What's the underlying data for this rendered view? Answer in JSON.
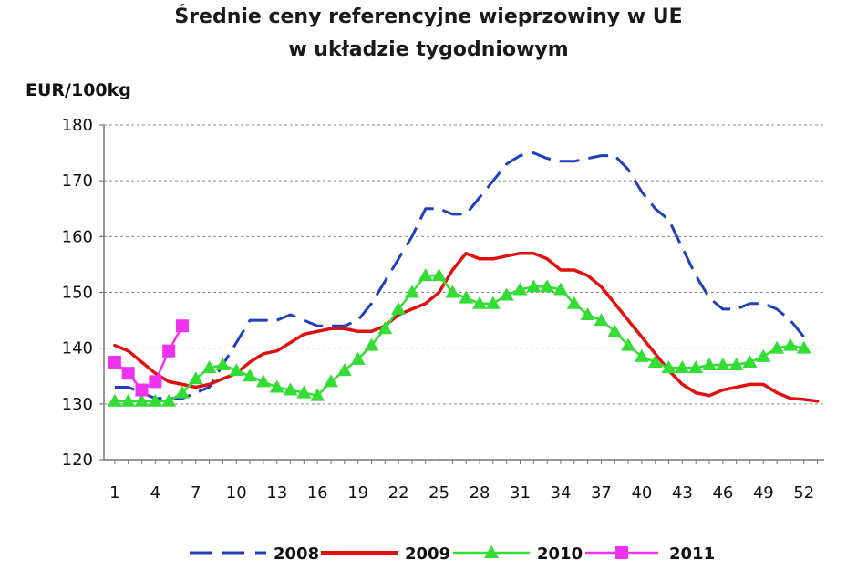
{
  "chart_data": {
    "type": "line",
    "title": "Średnie ceny referencyjne wieprzowiny w UE",
    "subtitle": "w układzie tygodniowym",
    "ylabel": "EUR/100kg",
    "xlabel": "",
    "xlim": [
      1,
      53
    ],
    "ylim": [
      120,
      180
    ],
    "yticks": [
      120,
      130,
      140,
      150,
      160,
      170,
      180
    ],
    "xticks": [
      1,
      4,
      7,
      10,
      13,
      16,
      19,
      22,
      25,
      28,
      31,
      34,
      37,
      40,
      43,
      46,
      49,
      52
    ],
    "grid": true,
    "legend_position": "bottom",
    "series": [
      {
        "name": "2008",
        "color": "#1f3fbf",
        "style": "dashed",
        "marker": "none",
        "x": [
          1,
          2,
          3,
          4,
          5,
          6,
          7,
          8,
          9,
          10,
          11,
          12,
          13,
          14,
          15,
          16,
          17,
          18,
          19,
          20,
          21,
          22,
          23,
          24,
          25,
          26,
          27,
          28,
          29,
          30,
          31,
          32,
          33,
          34,
          35,
          36,
          37,
          38,
          39,
          40,
          41,
          42,
          43,
          44,
          45,
          46,
          47,
          48,
          49,
          50,
          51,
          52
        ],
        "values": [
          133,
          133,
          132,
          131,
          131,
          131,
          132,
          133,
          137,
          141,
          145,
          145,
          145,
          146,
          145,
          144,
          144,
          144,
          145,
          148,
          152,
          156,
          160,
          165,
          165,
          164,
          164,
          167,
          170,
          173,
          174.5,
          175,
          174,
          173.5,
          173.5,
          174,
          174.5,
          174.5,
          172,
          168,
          165,
          163,
          158,
          153,
          149,
          147,
          147,
          148,
          148,
          147,
          145,
          142
        ]
      },
      {
        "name": "2009",
        "color": "#e01010",
        "style": "solid",
        "marker": "none",
        "x": [
          1,
          2,
          3,
          4,
          5,
          6,
          7,
          8,
          9,
          10,
          11,
          12,
          13,
          14,
          15,
          16,
          17,
          18,
          19,
          20,
          21,
          22,
          23,
          24,
          25,
          26,
          27,
          28,
          29,
          30,
          31,
          32,
          33,
          34,
          35,
          36,
          37,
          38,
          39,
          40,
          41,
          42,
          43,
          44,
          45,
          46,
          47,
          48,
          49,
          50,
          51,
          52,
          53
        ],
        "values": [
          140.5,
          139.5,
          137.5,
          135.5,
          134,
          133.5,
          133,
          133.5,
          134.5,
          135.5,
          137.5,
          139,
          139.5,
          141,
          142.5,
          143,
          143.5,
          143.5,
          143,
          143,
          144,
          146,
          147,
          148,
          150,
          154,
          157,
          156,
          156,
          156.5,
          157,
          157,
          156,
          154,
          154,
          153,
          151,
          148,
          145,
          142,
          139,
          136,
          133.5,
          132,
          131.5,
          132.5,
          133,
          133.5,
          133.5,
          132,
          131,
          130.8,
          130.5
        ]
      },
      {
        "name": "2010",
        "color": "#33dd33",
        "style": "solid",
        "marker": "triangle",
        "x": [
          1,
          2,
          3,
          4,
          5,
          6,
          7,
          8,
          9,
          10,
          11,
          12,
          13,
          14,
          15,
          16,
          17,
          18,
          19,
          20,
          21,
          22,
          23,
          24,
          25,
          26,
          27,
          28,
          29,
          30,
          31,
          32,
          33,
          34,
          35,
          36,
          37,
          38,
          39,
          40,
          41,
          42,
          43,
          44,
          45,
          46,
          47,
          48,
          49,
          50,
          51,
          52
        ],
        "values": [
          130.5,
          130.5,
          130.5,
          130.5,
          130.5,
          132,
          134.5,
          136.5,
          137,
          136,
          135,
          134,
          133,
          132.5,
          132,
          131.5,
          134,
          136,
          138,
          140.5,
          143.5,
          147,
          150,
          153,
          153,
          150,
          149,
          148,
          148,
          149.5,
          150.5,
          151,
          151,
          150.5,
          148,
          146,
          145,
          143,
          140.5,
          138.5,
          137.5,
          136.5,
          136.5,
          136.5,
          137,
          137,
          137,
          137.5,
          138.5,
          140,
          140.5,
          140
        ]
      },
      {
        "name": "2011",
        "color": "#ee33ee",
        "style": "solid",
        "marker": "square",
        "x": [
          1,
          2,
          3,
          4,
          5,
          6
        ],
        "values": [
          137.5,
          135.5,
          132.5,
          134,
          139.5,
          144
        ]
      }
    ]
  }
}
